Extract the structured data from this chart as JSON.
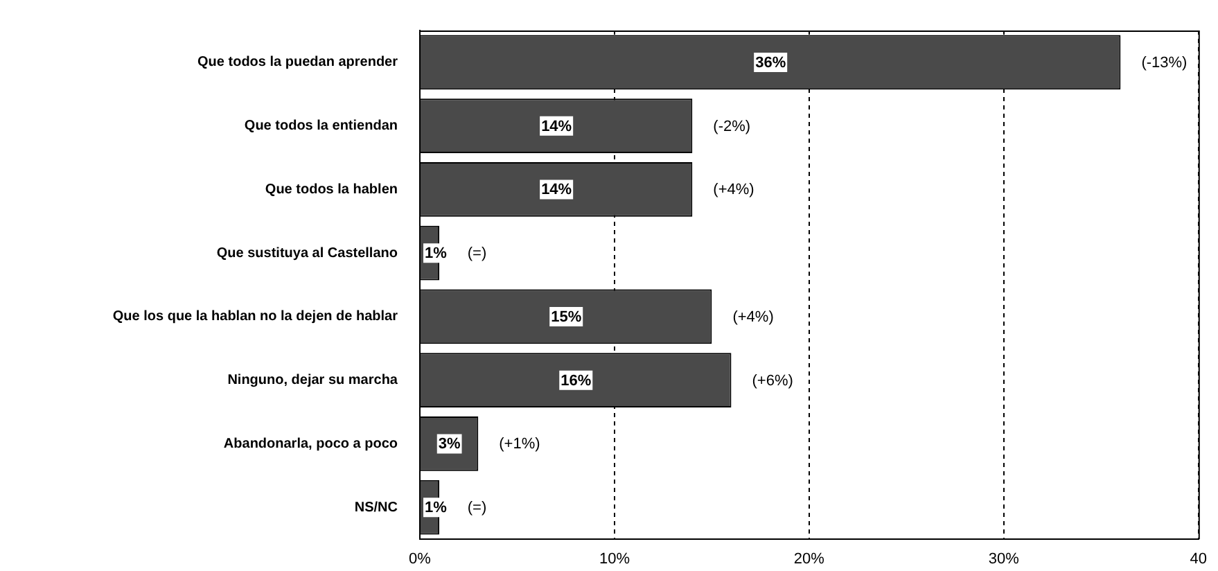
{
  "chart_data": {
    "type": "bar",
    "orientation": "horizontal",
    "categories": [
      "Que todos la puedan aprender",
      "Que todos la entiendan",
      "Que todos la hablen",
      "Que sustituya al Castellano",
      "Que los que la hablan no la dejen de hablar",
      "Ninguno, dejar su marcha",
      "Abandonarla, poco a poco",
      "NS/NC"
    ],
    "values": [
      36,
      14,
      14,
      1,
      15,
      16,
      3,
      1
    ],
    "color": "#4a4a4a",
    "value_labels": [
      "36%",
      "14%",
      "14%",
      "1%",
      "15%",
      "16%",
      "3%",
      "1%"
    ],
    "xlim": [
      0,
      40
    ],
    "xticks": [
      {
        "value": 0,
        "label": "0%"
      },
      {
        "value": 10,
        "label": "10%"
      },
      {
        "value": 20,
        "label": "20%"
      },
      {
        "value": 30,
        "label": "30%"
      },
      40
    ],
    "grid": "x",
    "annotations": [
      "(-13%)",
      "(-2%)",
      "(+4%)",
      "(=)",
      "(+4%)",
      "(+6%)",
      "(+1%)",
      "(=)"
    ]
  }
}
